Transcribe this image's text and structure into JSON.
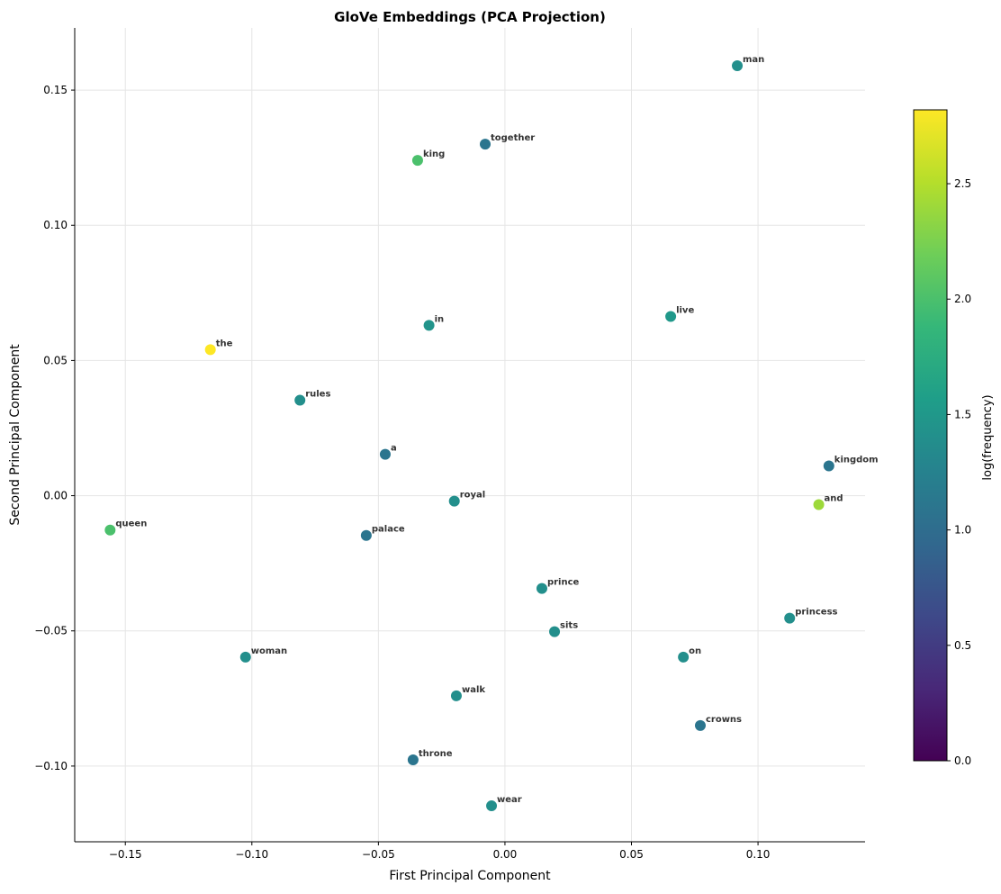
{
  "chart_data": {
    "type": "scatter",
    "title": "GloVe Embeddings (PCA Projection)",
    "xlabel": "First Principal Component",
    "ylabel": "Second Principal Component",
    "xlim": [
      -0.17,
      0.1423
    ],
    "ylim": [
      -0.128,
      0.173
    ],
    "xticks": [
      -0.15,
      -0.1,
      -0.05,
      0.0,
      0.05,
      0.1
    ],
    "xtick_labels": [
      "−0.15",
      "−0.10",
      "−0.05",
      "0.00",
      "0.05",
      "0.10"
    ],
    "yticks": [
      -0.1,
      -0.05,
      0.0,
      0.05,
      0.1,
      0.15
    ],
    "ytick_labels": [
      "−0.10",
      "−0.05",
      "0.00",
      "0.05",
      "0.10",
      "0.15"
    ],
    "grid": true,
    "colormap": "viridis",
    "colorbar": {
      "label": "log(frequency)",
      "range": [
        0,
        2.82
      ],
      "ticks": [
        0.0,
        0.5,
        1.0,
        1.5,
        2.0,
        2.5
      ],
      "tick_labels": [
        "0.0",
        "0.5",
        "1.0",
        "1.5",
        "2.0",
        "2.5"
      ]
    },
    "points": [
      {
        "label": "man",
        "x": 0.0918,
        "y": 0.159,
        "c": 1.4
      },
      {
        "label": "together",
        "x": -0.0078,
        "y": 0.13,
        "c": 1.1
      },
      {
        "label": "king",
        "x": -0.0345,
        "y": 0.124,
        "c": 2.0
      },
      {
        "label": "live",
        "x": 0.0655,
        "y": 0.0663,
        "c": 1.5
      },
      {
        "label": "in",
        "x": -0.03,
        "y": 0.063,
        "c": 1.45
      },
      {
        "label": "the",
        "x": -0.1164,
        "y": 0.054,
        "c": 2.82
      },
      {
        "label": "rules",
        "x": -0.081,
        "y": 0.0353,
        "c": 1.4
      },
      {
        "label": "a",
        "x": -0.0473,
        "y": 0.0153,
        "c": 1.1
      },
      {
        "label": "kingdom",
        "x": 0.128,
        "y": 0.011,
        "c": 1.1
      },
      {
        "label": "royal",
        "x": -0.02,
        "y": -0.002,
        "c": 1.4
      },
      {
        "label": "and",
        "x": 0.124,
        "y": -0.0033,
        "c": 2.4
      },
      {
        "label": "queen",
        "x": -0.156,
        "y": -0.0127,
        "c": 2.0
      },
      {
        "label": "palace",
        "x": -0.0548,
        "y": -0.0147,
        "c": 1.1
      },
      {
        "label": "prince",
        "x": 0.0146,
        "y": -0.0343,
        "c": 1.4
      },
      {
        "label": "princess",
        "x": 0.1125,
        "y": -0.0453,
        "c": 1.4
      },
      {
        "label": "sits",
        "x": 0.0196,
        "y": -0.0503,
        "c": 1.4
      },
      {
        "label": "woman",
        "x": -0.1025,
        "y": -0.0597,
        "c": 1.4
      },
      {
        "label": "on",
        "x": 0.0705,
        "y": -0.0597,
        "c": 1.4
      },
      {
        "label": "walk",
        "x": -0.0192,
        "y": -0.074,
        "c": 1.4
      },
      {
        "label": "crowns",
        "x": 0.0772,
        "y": -0.085,
        "c": 1.1
      },
      {
        "label": "throne",
        "x": -0.0363,
        "y": -0.0977,
        "c": 1.1
      },
      {
        "label": "wear",
        "x": -0.0053,
        "y": -0.1147,
        "c": 1.4
      }
    ]
  }
}
